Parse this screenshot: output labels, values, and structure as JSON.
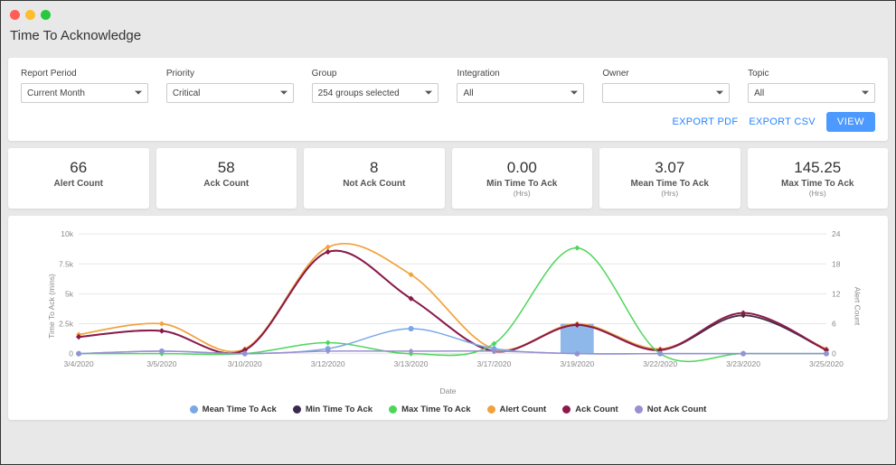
{
  "page_title": "Time To Acknowledge",
  "filters": {
    "report_period": {
      "label": "Report Period",
      "value": "Current Month"
    },
    "priority": {
      "label": "Priority",
      "value": "Critical"
    },
    "group": {
      "label": "Group",
      "value": "254 groups selected"
    },
    "integration": {
      "label": "Integration",
      "value": "All"
    },
    "owner": {
      "label": "Owner",
      "value": ""
    },
    "topic": {
      "label": "Topic",
      "value": "All"
    }
  },
  "actions": {
    "export_pdf": "EXPORT PDF",
    "export_csv": "EXPORT CSV",
    "view": "VIEW"
  },
  "stats": [
    {
      "value": "66",
      "label": "Alert Count",
      "sub": ""
    },
    {
      "value": "58",
      "label": "Ack Count",
      "sub": ""
    },
    {
      "value": "8",
      "label": "Not Ack Count",
      "sub": ""
    },
    {
      "value": "0.00",
      "label": "Min Time To Ack",
      "sub": "(Hrs)"
    },
    {
      "value": "3.07",
      "label": "Mean Time To Ack",
      "sub": "(Hrs)"
    },
    {
      "value": "145.25",
      "label": "Max Time To Ack",
      "sub": "(Hrs)"
    }
  ],
  "chart": {
    "type": "line",
    "x_categories": [
      "3/4/2020",
      "3/5/2020",
      "3/10/2020",
      "3/12/2020",
      "3/13/2020",
      "3/17/2020",
      "3/19/2020",
      "3/22/2020",
      "3/23/2020",
      "3/25/2020"
    ],
    "x_label": "Date",
    "y_left": {
      "label": "Time To Ack (mins)",
      "min": 0,
      "max": 10000,
      "ticks": [
        0,
        2500,
        5000,
        7500,
        10000
      ],
      "tick_labels": [
        "0",
        "2.5k",
        "5k",
        "7.5k",
        "10k"
      ]
    },
    "y_right": {
      "label": "Alert Count",
      "min": 0,
      "max": 24,
      "ticks": [
        0,
        6,
        12,
        18,
        24
      ],
      "tick_labels": [
        "0",
        "6",
        "12",
        "18",
        "24"
      ]
    },
    "grid_color": "#e6e6e6",
    "tick_font_size": 8.5,
    "legend": [
      {
        "key": "mean",
        "label": "Mean Time To Ack",
        "color": "#7aa8e6",
        "marker": "circle"
      },
      {
        "key": "min",
        "label": "Min Time To Ack",
        "color": "#3c2a4d",
        "marker": "diamond"
      },
      {
        "key": "max",
        "label": "Max Time To Ack",
        "color": "#4dd65a",
        "marker": "diamond"
      },
      {
        "key": "alert",
        "label": "Alert Count",
        "color": "#f2a23c",
        "marker": "diamond"
      },
      {
        "key": "ack",
        "label": "Ack Count",
        "color": "#8b1a4a",
        "marker": "diamond"
      },
      {
        "key": "nack",
        "label": "Not Ack Count",
        "color": "#9a8fcf",
        "marker": "diamond"
      }
    ],
    "bars": {
      "axis": "right",
      "color": "#8fb8ea",
      "values": [
        0,
        0,
        0,
        0,
        0,
        0,
        6,
        0,
        0,
        0
      ],
      "width": 0.4
    },
    "series": [
      {
        "key": "alert",
        "axis": "left",
        "color": "#f2a23c",
        "width": 1.7,
        "marker": "diamond",
        "values": [
          1600,
          2500,
          400,
          8900,
          6600,
          400,
          2500,
          400,
          3200,
          400
        ]
      },
      {
        "key": "min",
        "axis": "left",
        "color": "#3c2a4d",
        "width": 1.7,
        "marker": "diamond",
        "values": [
          1400,
          1900,
          300,
          8500,
          4600,
          200,
          2400,
          300,
          3200,
          300
        ]
      },
      {
        "key": "ack",
        "axis": "left",
        "color": "#8b1a4a",
        "width": 2.0,
        "marker": "diamond",
        "values": [
          1400,
          1900,
          300,
          8500,
          4600,
          200,
          2400,
          300,
          3400,
          300
        ]
      },
      {
        "key": "max",
        "axis": "right",
        "color": "#4dd65a",
        "width": 1.5,
        "marker": "diamond",
        "values": [
          0,
          0,
          0,
          2.2,
          0,
          2,
          21.2,
          0,
          0,
          0
        ]
      },
      {
        "key": "mean",
        "axis": "right",
        "color": "#7aa8e6",
        "width": 1.5,
        "marker": "circle",
        "values": [
          0,
          0.5,
          0,
          1,
          5,
          1,
          0,
          0,
          0,
          0
        ]
      },
      {
        "key": "nack",
        "axis": "right",
        "color": "#9a8fcf",
        "width": 1.5,
        "marker": "diamond",
        "values": [
          0,
          0.5,
          0,
          0.5,
          0.5,
          0.5,
          0,
          0,
          0,
          0
        ]
      }
    ]
  }
}
